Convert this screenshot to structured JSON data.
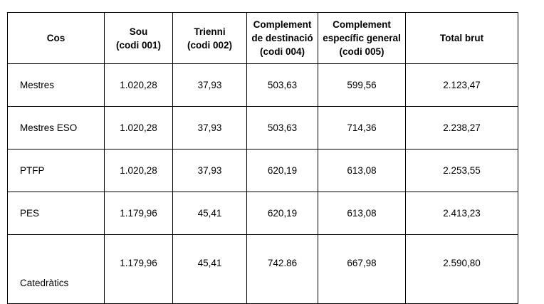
{
  "table": {
    "header": [
      "Cos",
      "Sou\n(codi 001)",
      "Trienni\n(codi 002)",
      "Complement\nde destinació\n(codi 004)",
      "Complement\nespecífic general\n(codi 005)",
      "Total brut"
    ],
    "rows": [
      [
        "Mestres",
        "1.020,28",
        "37,93",
        "503,63",
        "599,56",
        "2.123,47"
      ],
      [
        "Mestres ESO",
        "1.020,28",
        "37,93",
        "503,63",
        "714,36",
        "2.238,27"
      ],
      [
        "PTFP",
        "1.020,28",
        "37,93",
        "620,19",
        "613,08",
        "2.253,55"
      ],
      [
        "PES",
        "1.179,96",
        "45,41",
        "620,19",
        "613,08",
        "2.413,23"
      ],
      [
        "Catedràtics",
        "1.179,96",
        "45,41",
        "742.86",
        "667,98",
        "2.590,80"
      ]
    ]
  }
}
